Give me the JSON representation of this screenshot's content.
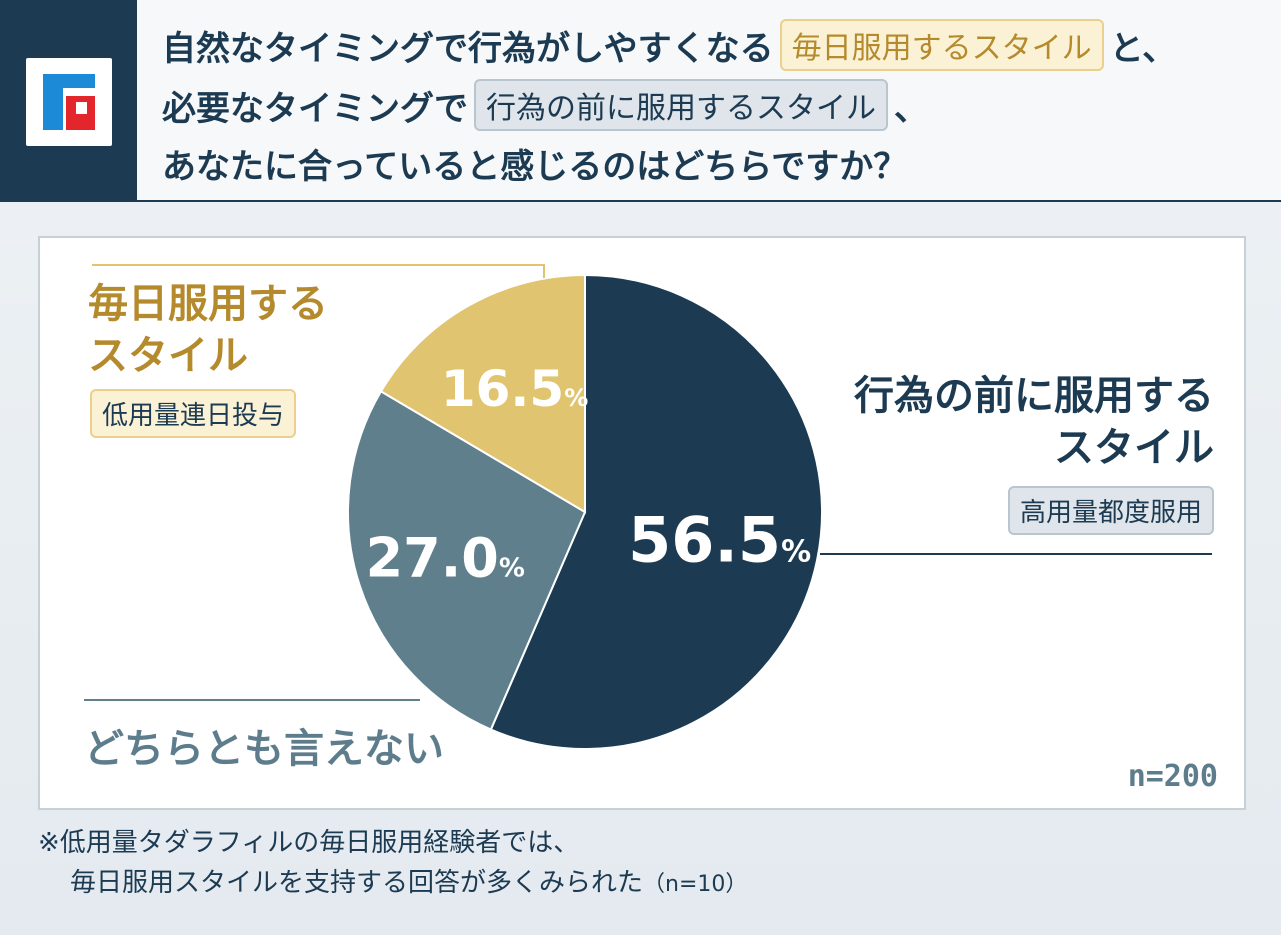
{
  "header": {
    "line1_pre": "自然なタイミングで行為がしやすくなる",
    "line1_chip": "毎日服用するスタイル",
    "line1_post": "と、",
    "line2_pre": "必要なタイミングで",
    "line2_chip": "行為の前に服用するスタイル",
    "line2_post": "、",
    "line3": "あなたに合っていると感じるのはどちらですか？"
  },
  "labels": {
    "daily_line1": "毎日服用する",
    "daily_line2": "スタイル",
    "daily_sub": "低用量連日投与",
    "ondemand_line1": "行為の前に服用する",
    "ondemand_line2": "スタイル",
    "ondemand_sub": "高用量都度服用",
    "neither": "どちらとも言えない",
    "n": "n=200"
  },
  "footnote": {
    "line1": "※低用量タダラフィルの毎日服用経験者では、",
    "line2": "毎日服用スタイルを支持する回答が多くみられた",
    "line2_small": "（n=10）"
  },
  "colors": {
    "navy": "#1c3b52",
    "slate": "#5f7f8d",
    "gold": "#e0c46f"
  },
  "chart_data": {
    "type": "pie",
    "slices": [
      {
        "label": "行為の前に服用するスタイル",
        "value": 56.5,
        "display": "56.5",
        "color": "#1c3b52"
      },
      {
        "label": "どちらとも言えない",
        "value": 27.0,
        "display": "27.0",
        "color": "#5f7f8d"
      },
      {
        "label": "毎日服用するスタイル",
        "value": 16.5,
        "display": "16.5",
        "color": "#e0c46f"
      }
    ],
    "unit": "%",
    "n": "n=200"
  }
}
